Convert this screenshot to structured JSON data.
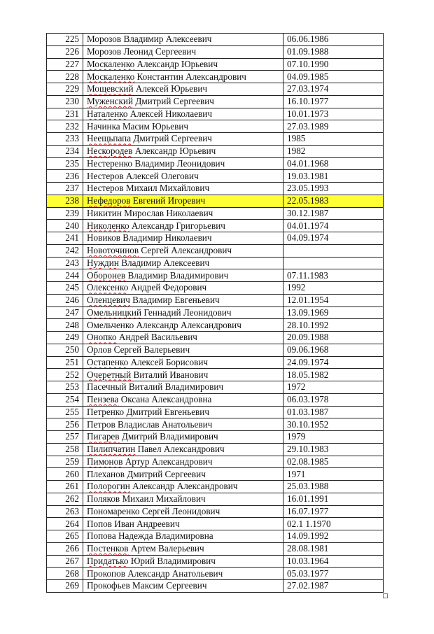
{
  "highlight_color": "#ffff33",
  "rows": [
    {
      "n": "225",
      "s": "Морозов",
      "r": " Владимир Алексеевич",
      "d": "06.06.1986",
      "sp": false
    },
    {
      "n": "226",
      "s": "Морозов",
      "r": " Леонид Сергеевич",
      "d": "01.09.1988",
      "sp": false
    },
    {
      "n": "227",
      "s": "Москаленко",
      "r": " Александр Юрьевич",
      "d": "07.10.1990",
      "sp": true
    },
    {
      "n": "228",
      "s": "Москаленко",
      "r": " Константин Александрович",
      "d": "04.09.1985",
      "sp": true
    },
    {
      "n": "229",
      "s": "Мощевский",
      "r": " Алексей Юрьевич",
      "d": "27.03.1974",
      "sp": true
    },
    {
      "n": "230",
      "s": "Муженский",
      "r": " Дмитрий Сергеевич",
      "d": "16.10.1977",
      "sp": true
    },
    {
      "n": "231",
      "s": "Натaленко",
      "r": " Алексей Николаевич",
      "d": "10.01.1973",
      "sp": true
    },
    {
      "n": "232",
      "s": "Начинка Масим",
      "r": " Юрьевич",
      "d": "27.03.1989",
      "sp": false
    },
    {
      "n": "233",
      "s": "Неещьпапа",
      "r": " Дмитрий Сергеевич",
      "d": "1985",
      "sp": true
    },
    {
      "n": "234",
      "s": "Нескородев",
      "r": " Александр Юрьевич",
      "d": "1982",
      "sp": true
    },
    {
      "n": "235",
      "s": "Нестеренко",
      "r": " Владимир Леонидович",
      "d": "04.01.1968",
      "sp": false
    },
    {
      "n": "236",
      "s": "Нестеров",
      "r": " Алексей Олегович",
      "d": "19.03.1981",
      "sp": false
    },
    {
      "n": "237",
      "s": "Нестеров",
      "r": " Михаил Михайлович",
      "d": "23.05.1993",
      "sp": false
    },
    {
      "n": "238",
      "s": "Нефедоров",
      "r": " Евгений Игоревич",
      "d": "22.05.1983",
      "sp": true,
      "highlight": true
    },
    {
      "n": "239",
      "s": "Никитин",
      "r": " Мирослав Николаевич",
      "d": "30.12.1987",
      "sp": false
    },
    {
      "n": "240",
      "s": "Николенко",
      "r": " Александр Григорьевич",
      "d": "04.01.1974",
      "sp": true
    },
    {
      "n": "241",
      "s": "Новиков",
      "r": " Владимир Николаевич",
      "d": "04.09.1974",
      "sp": false
    },
    {
      "n": "242",
      "s": "Новоточинов",
      "r": " Сергей Александрович",
      "d": "",
      "sp": true
    },
    {
      "n": "243",
      "s": "Нуждин",
      "r": " Владимир Алексеевич",
      "d": "",
      "sp": true
    },
    {
      "n": "244",
      "s": "Оборонев",
      "r": " Владимир Владимирович",
      "d": "07.11.1983",
      "sp": true
    },
    {
      "n": "245",
      "s": "Олексенко",
      "r": " Андрей Федорович",
      "d": "1992",
      "sp": true
    },
    {
      "n": "246",
      "s": "Оленцевич",
      "r": " Владимир Евгеньевич",
      "d": "12.01.1954",
      "sp": true
    },
    {
      "n": "247",
      "s": "Омельницкий",
      "r": " Геннадий Леонидович",
      "d": "13.09.1969",
      "sp": true
    },
    {
      "n": "248",
      "s": "Омельченко",
      "r": " Александр Александрович",
      "d": "28.10.1992",
      "sp": false
    },
    {
      "n": "249",
      "s": "Онопко",
      "r": " Андрей Васильевич",
      "d": "20.09.1988",
      "sp": true
    },
    {
      "n": "250",
      "s": "Орлов",
      "r": " Сергей Валерьевич",
      "d": "09.06.1968",
      "sp": false
    },
    {
      "n": "251",
      "s": "Остапенко",
      "r": " Алексей Борисович",
      "d": "24.09.1974",
      "sp": true
    },
    {
      "n": "252",
      "s": "Очеретный",
      "r": " Виталий Иванович",
      "d": "18.05.1982",
      "sp": true
    },
    {
      "n": "253",
      "s": "Пасечный",
      "r": " Виталий Владимирович",
      "d": "1972",
      "sp": false
    },
    {
      "n": "254",
      "s": "Пензева",
      "r": " Оксана Александровна",
      "d": "06.03.1978",
      "sp": true
    },
    {
      "n": "255",
      "s": "Петренко",
      "r": " Дмитрий Евгеньевич",
      "d": "01.03.1987",
      "sp": false
    },
    {
      "n": "256",
      "s": "Петров",
      "r": " Владислав Анатольевич",
      "d": "30.10.1952",
      "sp": false
    },
    {
      "n": "257",
      "s": "Пигарев",
      "r": " Дмитрий Владимирович",
      "d": "1979",
      "sp": true
    },
    {
      "n": "258",
      "s": "Пилипчатин",
      "r": " Павел Александрович",
      "d": "29.10.1983",
      "sp": true
    },
    {
      "n": "259",
      "s": "Пимонов",
      "r": " Артур Александрович",
      "d": "02.08.1985",
      "sp": true
    },
    {
      "n": "260",
      "s": "Плеханов",
      "r": " Дмитрий Сергеевич",
      "d": "1971",
      "sp": false
    },
    {
      "n": "261",
      "s": "Полорогин",
      "r": " Александр Александрович",
      "d": "25.03.1988",
      "sp": true
    },
    {
      "n": "262",
      "s": "Поляков",
      "r": " Михаил Михайлович",
      "d": "16.01.1991",
      "sp": false
    },
    {
      "n": "263",
      "s": "Пономаренко",
      "r": " Сергей Леонидович",
      "d": "16.07.1977",
      "sp": false
    },
    {
      "n": "264",
      "s": "Попов",
      "r": " Иван Андреевич",
      "d": "02.1 1.1970",
      "sp": false
    },
    {
      "n": "265",
      "s": "Попова",
      "r": " Надежда Владимировна",
      "d": "14.09.1992",
      "sp": false
    },
    {
      "n": "266",
      "s": "Постенков",
      "r": " Артем Валерьевич",
      "d": "28.08.1981",
      "sp": true
    },
    {
      "n": "267",
      "s": "Придатько",
      "r": " Юрий Владимирович",
      "d": "10.03.1964",
      "sp": true
    },
    {
      "n": "268",
      "s": "Прокопов",
      "r": " Александр Анатольевич",
      "d": "05.03.1977",
      "sp": false
    },
    {
      "n": "269",
      "s": "Прокофьев",
      "r": " Максим Сергеевич",
      "d": "27.02.1987",
      "sp": false
    }
  ]
}
